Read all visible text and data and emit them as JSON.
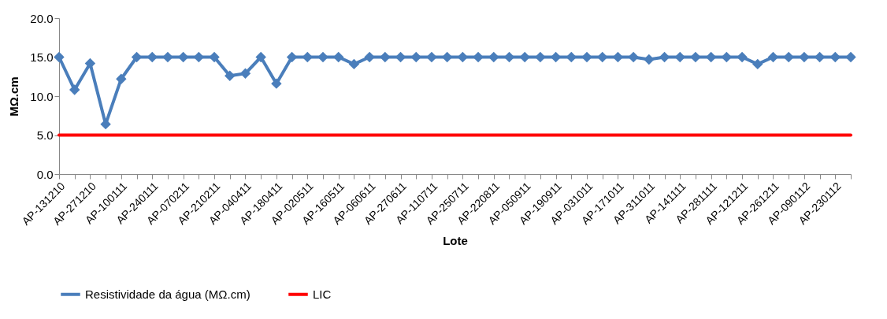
{
  "chart_data": {
    "type": "line",
    "xlabel": "Lote",
    "ylabel": "MΩ.cm",
    "categories": [
      "AP-131210",
      null,
      "AP-271210",
      null,
      "AP-100111",
      null,
      "AP-240111",
      null,
      "AP-070211",
      null,
      "AP-210211",
      null,
      "AP-040411",
      null,
      "AP-180411",
      null,
      "AP-020511",
      null,
      "AP-160511",
      null,
      "AP-060611",
      null,
      "AP-270611",
      null,
      "AP-110711",
      null,
      "AP-250711",
      null,
      "AP-220811",
      null,
      "AP-050911",
      null,
      "AP-190911",
      null,
      "AP-031011",
      null,
      "AP-171011",
      null,
      "AP-311011",
      null,
      "AP-141111",
      null,
      "AP-281111",
      null,
      "AP-121211",
      null,
      "AP-261211",
      null,
      "AP-090112",
      null,
      "AP-230112",
      null
    ],
    "series": [
      {
        "name": "Resistividade da água (MΩ.cm)",
        "color": "#4a7ebb",
        "marker": "diamond",
        "values": [
          15,
          10.8,
          14.2,
          6.4,
          12.2,
          15,
          15,
          15,
          15,
          15,
          15,
          12.6,
          12.9,
          15,
          11.6,
          15,
          15,
          15,
          15,
          14.1,
          15,
          15,
          15,
          15,
          15,
          15,
          15,
          15,
          15,
          15,
          15,
          15,
          15,
          15,
          15,
          15,
          15,
          15,
          14.7,
          15,
          15,
          15,
          15,
          15,
          15,
          14.1,
          15,
          15,
          15,
          15,
          15,
          15
        ]
      },
      {
        "name": "LIC",
        "color": "#ff0000",
        "marker": "none",
        "values": [
          5,
          5,
          5,
          5,
          5,
          5,
          5,
          5,
          5,
          5,
          5,
          5,
          5,
          5,
          5,
          5,
          5,
          5,
          5,
          5,
          5,
          5,
          5,
          5,
          5,
          5,
          5,
          5,
          5,
          5,
          5,
          5,
          5,
          5,
          5,
          5,
          5,
          5,
          5,
          5,
          5,
          5,
          5,
          5,
          5,
          5,
          5,
          5,
          5,
          5,
          5,
          5
        ]
      }
    ],
    "ylim": [
      0,
      20
    ],
    "yticks": [
      {
        "value": 0,
        "label": "0.0"
      },
      {
        "value": 5,
        "label": "5.0"
      },
      {
        "value": 10,
        "label": "10.0"
      },
      {
        "value": 15,
        "label": "15.0"
      },
      {
        "value": 20,
        "label": "20.0"
      }
    ],
    "grid": false,
    "legend": "bottom",
    "line_style": "solid"
  }
}
